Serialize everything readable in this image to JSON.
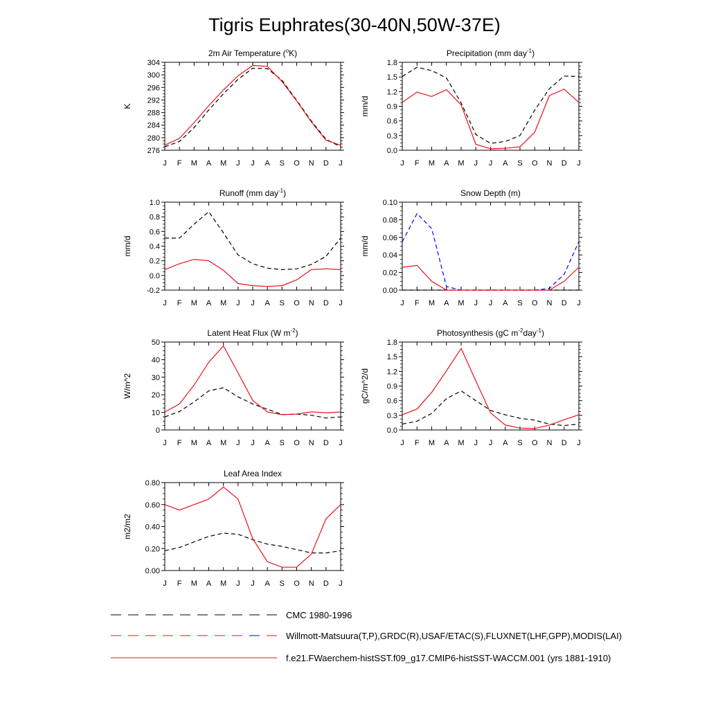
{
  "page": {
    "title": "Tigris Euphrates(30-40N,50W-37E)",
    "months": [
      "J",
      "F",
      "M",
      "A",
      "M",
      "J",
      "J",
      "A",
      "S",
      "O",
      "N",
      "D",
      "J"
    ]
  },
  "legend": [
    {
      "label": "CMC 1980-1996",
      "style": "dash",
      "colors": [
        "#000000"
      ]
    },
    {
      "label": "Willmott-Matsuura(T,P),GRDC(R),USAF/ETAC(S),FLUXNET(LHF,GPP),MODIS(LAI)",
      "style": "dash",
      "colors": [
        "#e8101a",
        "#0000ff"
      ]
    },
    {
      "label": "f.e21.FWaerchem-histSST.f09_g17.CMIP6-histSST-WACCM.001 (yrs 1881-1910)",
      "style": "solid",
      "colors": [
        "#e8101a"
      ]
    }
  ],
  "colors": {
    "model": "#e8101a",
    "obs": "#000000",
    "snow_obs": "#0000ff",
    "frame": "#000000"
  },
  "chart_data": [
    {
      "type": "line",
      "title": "2m Air Temperature (°K)",
      "ylabel": "K",
      "ylim": [
        276,
        304
      ],
      "yticks": [
        276,
        280,
        284,
        288,
        292,
        296,
        300,
        304
      ],
      "ytick_labels": [
        "276",
        "280",
        "284",
        "288",
        "292",
        "296",
        "300",
        "304"
      ],
      "x": [
        "J",
        "F",
        "M",
        "A",
        "M",
        "J",
        "J",
        "A",
        "S",
        "O",
        "N",
        "D",
        "J"
      ],
      "series": [
        {
          "role": "model",
          "style": "solid",
          "color": "#e8101a",
          "values": [
            277.6,
            279.8,
            284.8,
            290.2,
            295.2,
            299.7,
            303.0,
            302.7,
            297.9,
            291.7,
            285.0,
            279.2,
            277.6
          ]
        },
        {
          "role": "obs",
          "style": "dash",
          "color": "#000000",
          "values": [
            277.1,
            278.8,
            283.2,
            288.8,
            294.0,
            298.6,
            302.1,
            302.0,
            298.3,
            291.9,
            285.3,
            279.5,
            277.1
          ]
        }
      ]
    },
    {
      "type": "line",
      "title": "Precipitation (mm day-1)",
      "ylabel": "mm/d",
      "ylim": [
        0.0,
        1.8
      ],
      "yticks": [
        0.0,
        0.3,
        0.6,
        0.9,
        1.2,
        1.5,
        1.8
      ],
      "ytick_labels": [
        "0.0",
        "0.3",
        "0.6",
        "0.9",
        "1.2",
        "1.5",
        "1.8"
      ],
      "x": [
        "J",
        "F",
        "M",
        "A",
        "M",
        "J",
        "J",
        "A",
        "S",
        "O",
        "N",
        "D",
        "J"
      ],
      "series": [
        {
          "role": "model",
          "style": "solid",
          "color": "#e8101a",
          "values": [
            0.98,
            1.19,
            1.1,
            1.24,
            0.93,
            0.12,
            0.03,
            0.04,
            0.07,
            0.37,
            1.12,
            1.25,
            0.98
          ]
        },
        {
          "role": "obs",
          "style": "dash",
          "color": "#000000",
          "values": [
            1.51,
            1.7,
            1.63,
            1.48,
            0.97,
            0.32,
            0.14,
            0.18,
            0.3,
            0.82,
            1.26,
            1.52,
            1.51
          ]
        }
      ]
    },
    {
      "type": "line",
      "title": "Runoff (mm day-1)",
      "ylabel": "mm/d",
      "ylim": [
        -0.2,
        1.0
      ],
      "yticks": [
        -0.2,
        0.0,
        0.2,
        0.4,
        0.6,
        0.8,
        1.0
      ],
      "ytick_labels": [
        "-0.2",
        "0.0",
        "0.2",
        "0.4",
        "0.6",
        "0.8",
        "1.0"
      ],
      "x": [
        "J",
        "F",
        "M",
        "A",
        "M",
        "J",
        "J",
        "A",
        "S",
        "O",
        "N",
        "D",
        "J"
      ],
      "series": [
        {
          "role": "model",
          "style": "solid",
          "color": "#e8101a",
          "values": [
            0.08,
            0.16,
            0.22,
            0.2,
            0.07,
            -0.11,
            -0.14,
            -0.15,
            -0.14,
            -0.06,
            0.08,
            0.09,
            0.08
          ]
        },
        {
          "role": "obs",
          "style": "dash",
          "color": "#000000",
          "values": [
            0.51,
            0.51,
            0.7,
            0.87,
            0.58,
            0.28,
            0.16,
            0.1,
            0.08,
            0.09,
            0.15,
            0.26,
            0.51
          ]
        }
      ]
    },
    {
      "type": "line",
      "title": "Snow Depth (m)",
      "ylabel": "mm/d",
      "ylim": [
        0.0,
        0.1
      ],
      "yticks": [
        0.0,
        0.02,
        0.04,
        0.06,
        0.08,
        0.1
      ],
      "ytick_labels": [
        "0.00",
        "0.02",
        "0.04",
        "0.06",
        "0.08",
        "0.10"
      ],
      "x": [
        "J",
        "F",
        "M",
        "A",
        "M",
        "J",
        "J",
        "A",
        "S",
        "O",
        "N",
        "D",
        "J"
      ],
      "series": [
        {
          "role": "model",
          "style": "solid",
          "color": "#e8101a",
          "values": [
            0.026,
            0.028,
            0.01,
            0.0,
            0.0,
            0.0,
            0.0,
            0.0,
            0.0,
            0.0,
            0.0,
            0.01,
            0.026
          ]
        },
        {
          "role": "obs",
          "style": "dash",
          "color": "#0000ff",
          "values": [
            0.055,
            0.087,
            0.07,
            0.004,
            0.0,
            0.0,
            0.0,
            0.0,
            0.0,
            0.0,
            0.002,
            0.018,
            0.055
          ]
        },
        {
          "role": "obs2",
          "style": "dash",
          "color": "#000000",
          "values": [
            0.0,
            0.0,
            0.0,
            0.0,
            0.0,
            0.0,
            0.0,
            0.0,
            0.0,
            0.0,
            0.0,
            0.0,
            0.0
          ]
        }
      ]
    },
    {
      "type": "line",
      "title": "Latent Heat Flux (W m-2)",
      "ylabel": "W/m^2",
      "ylim": [
        0,
        50
      ],
      "yticks": [
        0,
        10,
        20,
        30,
        40,
        50
      ],
      "ytick_labels": [
        "0",
        "10",
        "20",
        "30",
        "40",
        "50"
      ],
      "x": [
        "J",
        "F",
        "M",
        "A",
        "M",
        "J",
        "J",
        "A",
        "S",
        "O",
        "N",
        "D",
        "J"
      ],
      "series": [
        {
          "role": "model",
          "style": "solid",
          "color": "#e8101a",
          "values": [
            10.2,
            14.8,
            25.5,
            38.5,
            47.8,
            32.5,
            16.8,
            10.2,
            8.7,
            9.0,
            10.3,
            9.8,
            10.2
          ]
        },
        {
          "role": "obs",
          "style": "dash",
          "color": "#000000",
          "values": [
            7.4,
            10.5,
            16.0,
            22.2,
            24.0,
            18.8,
            14.8,
            11.8,
            8.8,
            9.0,
            8.4,
            6.8,
            7.4
          ]
        }
      ]
    },
    {
      "type": "line",
      "title": "Photosynthesis (gC m-2day-1)",
      "ylabel": "gC/m^2/d",
      "ylim": [
        0.0,
        1.8
      ],
      "yticks": [
        0.0,
        0.3,
        0.6,
        0.9,
        1.2,
        1.5,
        1.8
      ],
      "ytick_labels": [
        "0.0",
        "0.3",
        "0.6",
        "0.9",
        "1.2",
        "1.5",
        "1.8"
      ],
      "x": [
        "J",
        "F",
        "M",
        "A",
        "M",
        "J",
        "J",
        "A",
        "S",
        "O",
        "N",
        "D",
        "J"
      ],
      "series": [
        {
          "role": "model",
          "style": "solid",
          "color": "#e8101a",
          "values": [
            0.31,
            0.43,
            0.77,
            1.21,
            1.67,
            1.0,
            0.35,
            0.1,
            0.04,
            0.03,
            0.1,
            0.21,
            0.31
          ]
        },
        {
          "role": "obs",
          "style": "dash",
          "color": "#000000",
          "values": [
            0.12,
            0.18,
            0.34,
            0.64,
            0.8,
            0.6,
            0.4,
            0.31,
            0.24,
            0.2,
            0.12,
            0.09,
            0.12
          ]
        }
      ]
    },
    {
      "type": "line",
      "title": "Leaf Area Index",
      "ylabel": "m2/m2",
      "ylim": [
        0.0,
        0.8
      ],
      "yticks": [
        0.0,
        0.2,
        0.4,
        0.6,
        0.8
      ],
      "ytick_labels": [
        "0.00",
        "0.20",
        "0.40",
        "0.60",
        "0.80"
      ],
      "x": [
        "J",
        "F",
        "M",
        "A",
        "M",
        "J",
        "J",
        "A",
        "S",
        "O",
        "N",
        "D",
        "J"
      ],
      "series": [
        {
          "role": "model",
          "style": "solid",
          "color": "#e8101a",
          "values": [
            0.6,
            0.55,
            0.6,
            0.65,
            0.76,
            0.65,
            0.29,
            0.08,
            0.03,
            0.03,
            0.15,
            0.47,
            0.6
          ]
        },
        {
          "role": "obs",
          "style": "dash",
          "color": "#000000",
          "values": [
            0.18,
            0.21,
            0.26,
            0.31,
            0.34,
            0.33,
            0.28,
            0.24,
            0.22,
            0.19,
            0.16,
            0.16,
            0.18
          ]
        }
      ]
    }
  ]
}
